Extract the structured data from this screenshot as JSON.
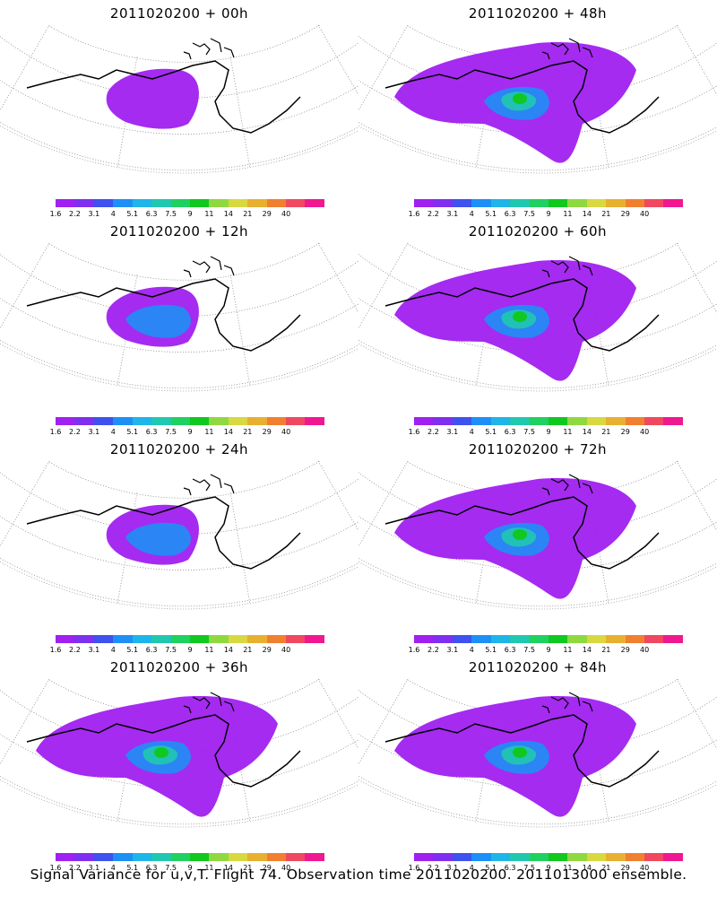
{
  "panels": [
    {
      "title": "2011020200 + 00h",
      "forecast_hour": 0,
      "spread_level": 0.15,
      "hotspot_level": 0
    },
    {
      "title": "2011020200 + 48h",
      "forecast_hour": 48,
      "spread_level": 0.65,
      "hotspot_level": 0.55
    },
    {
      "title": "2011020200 + 12h",
      "forecast_hour": 12,
      "spread_level": 0.35,
      "hotspot_level": 0.1
    },
    {
      "title": "2011020200 + 60h",
      "forecast_hour": 60,
      "spread_level": 0.75,
      "hotspot_level": 0.6
    },
    {
      "title": "2011020200 + 24h",
      "forecast_hour": 24,
      "spread_level": 0.45,
      "hotspot_level": 0.2
    },
    {
      "title": "2011020200 + 72h",
      "forecast_hour": 72,
      "spread_level": 0.85,
      "hotspot_level": 0.7
    },
    {
      "title": "2011020200 + 36h",
      "forecast_hour": 36,
      "spread_level": 0.55,
      "hotspot_level": 0.45
    },
    {
      "title": "2011020200 + 84h",
      "forecast_hour": 84,
      "spread_level": 1.0,
      "hotspot_level": 0.8
    }
  ],
  "colorbar": {
    "labels": [
      "1.6",
      "2.2",
      "3.1",
      "4",
      "5.1",
      "6.3",
      "7.5",
      "9",
      "11",
      "14",
      "21",
      "29",
      "40"
    ],
    "colors": [
      "#a020f0",
      "#7f2ff0",
      "#3d52ee",
      "#1e8ff5",
      "#1eb5e8",
      "#20c8b0",
      "#20d060",
      "#10c820",
      "#90d840",
      "#d8d840",
      "#e8b030",
      "#f08030",
      "#f04860",
      "#f01890"
    ]
  },
  "caption": "Signal Variance for u,v,T. Flight 74. Observation time 2011020200. 2011013000 ensemble."
}
